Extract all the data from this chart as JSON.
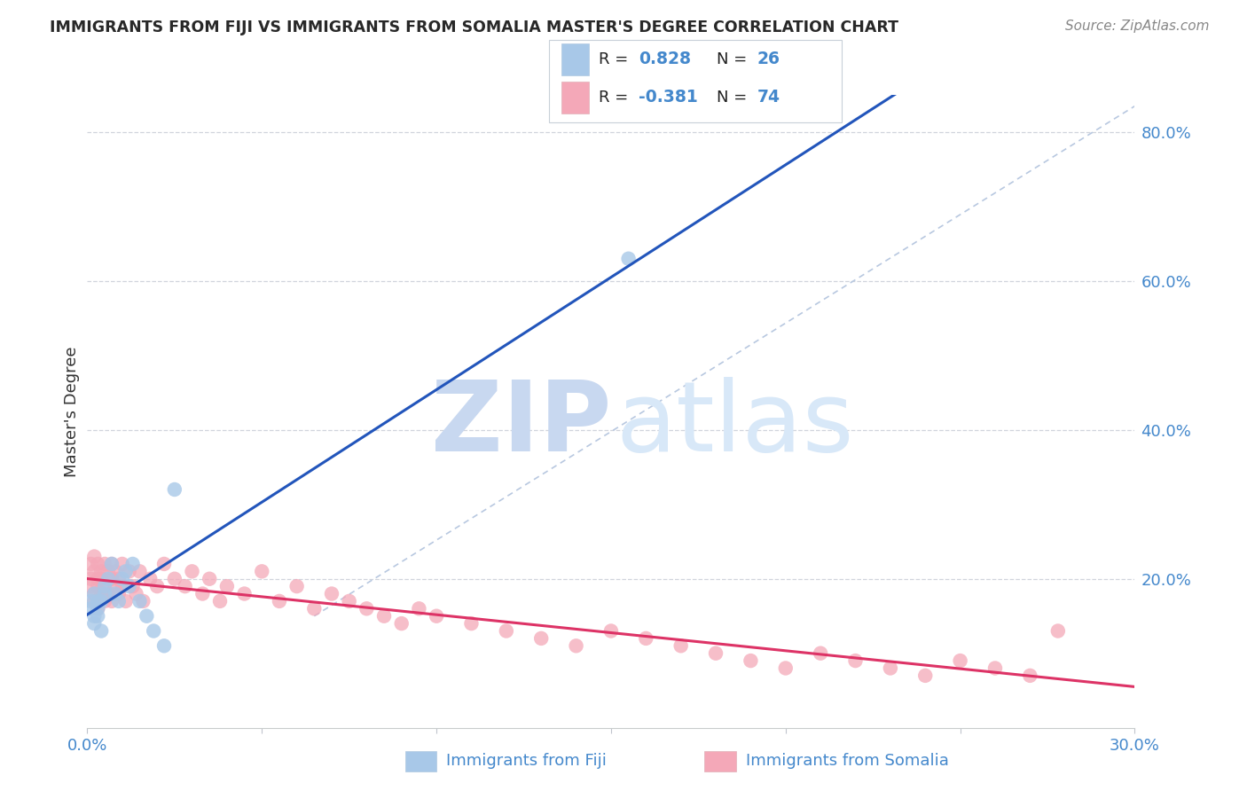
{
  "title": "IMMIGRANTS FROM FIJI VS IMMIGRANTS FROM SOMALIA MASTER'S DEGREE CORRELATION CHART",
  "source": "Source: ZipAtlas.com",
  "ylabel": "Master's Degree",
  "xlabel_fiji": "Immigrants from Fiji",
  "xlabel_somalia": "Immigrants from Somalia",
  "fiji_R": 0.828,
  "fiji_N": 26,
  "somalia_R": -0.381,
  "somalia_N": 74,
  "fiji_color": "#a8c8e8",
  "somalia_color": "#f4a8b8",
  "fiji_line_color": "#2255bb",
  "somalia_line_color": "#dd3366",
  "diagonal_color": "#b8c8e0",
  "background_color": "#ffffff",
  "grid_color": "#d0d4dc",
  "title_color": "#282828",
  "axis_label_color": "#4488cc",
  "watermark_zip_color": "#c8d8f0",
  "watermark_atlas_color": "#d8e8f8",
  "xlim": [
    0.0,
    0.3
  ],
  "ylim": [
    0.0,
    0.85
  ],
  "fiji_x": [
    0.001,
    0.001,
    0.002,
    0.002,
    0.002,
    0.003,
    0.003,
    0.003,
    0.004,
    0.004,
    0.005,
    0.005,
    0.006,
    0.007,
    0.008,
    0.009,
    0.01,
    0.011,
    0.012,
    0.013,
    0.015,
    0.017,
    0.019,
    0.022,
    0.025,
    0.155
  ],
  "fiji_y": [
    0.16,
    0.17,
    0.15,
    0.18,
    0.14,
    0.17,
    0.16,
    0.15,
    0.17,
    0.13,
    0.18,
    0.19,
    0.2,
    0.22,
    0.18,
    0.17,
    0.2,
    0.21,
    0.19,
    0.22,
    0.17,
    0.15,
    0.13,
    0.11,
    0.32,
    0.63
  ],
  "somalia_x": [
    0.001,
    0.001,
    0.001,
    0.002,
    0.002,
    0.002,
    0.002,
    0.003,
    0.003,
    0.003,
    0.003,
    0.004,
    0.004,
    0.004,
    0.005,
    0.005,
    0.005,
    0.006,
    0.006,
    0.007,
    0.007,
    0.007,
    0.008,
    0.008,
    0.009,
    0.009,
    0.01,
    0.01,
    0.011,
    0.012,
    0.013,
    0.014,
    0.015,
    0.016,
    0.018,
    0.02,
    0.022,
    0.025,
    0.028,
    0.03,
    0.033,
    0.035,
    0.038,
    0.04,
    0.045,
    0.05,
    0.055,
    0.06,
    0.065,
    0.07,
    0.075,
    0.08,
    0.085,
    0.09,
    0.095,
    0.1,
    0.11,
    0.12,
    0.13,
    0.14,
    0.15,
    0.16,
    0.17,
    0.18,
    0.19,
    0.2,
    0.21,
    0.22,
    0.23,
    0.24,
    0.25,
    0.26,
    0.27,
    0.278
  ],
  "somalia_y": [
    0.22,
    0.2,
    0.19,
    0.21,
    0.18,
    0.23,
    0.17,
    0.2,
    0.19,
    0.22,
    0.16,
    0.21,
    0.18,
    0.2,
    0.22,
    0.19,
    0.17,
    0.21,
    0.18,
    0.2,
    0.22,
    0.17,
    0.19,
    0.21,
    0.18,
    0.2,
    0.22,
    0.19,
    0.17,
    0.21,
    0.19,
    0.18,
    0.21,
    0.17,
    0.2,
    0.19,
    0.22,
    0.2,
    0.19,
    0.21,
    0.18,
    0.2,
    0.17,
    0.19,
    0.18,
    0.21,
    0.17,
    0.19,
    0.16,
    0.18,
    0.17,
    0.16,
    0.15,
    0.14,
    0.16,
    0.15,
    0.14,
    0.13,
    0.12,
    0.11,
    0.13,
    0.12,
    0.11,
    0.1,
    0.09,
    0.08,
    0.1,
    0.09,
    0.08,
    0.07,
    0.09,
    0.08,
    0.07,
    0.13
  ]
}
